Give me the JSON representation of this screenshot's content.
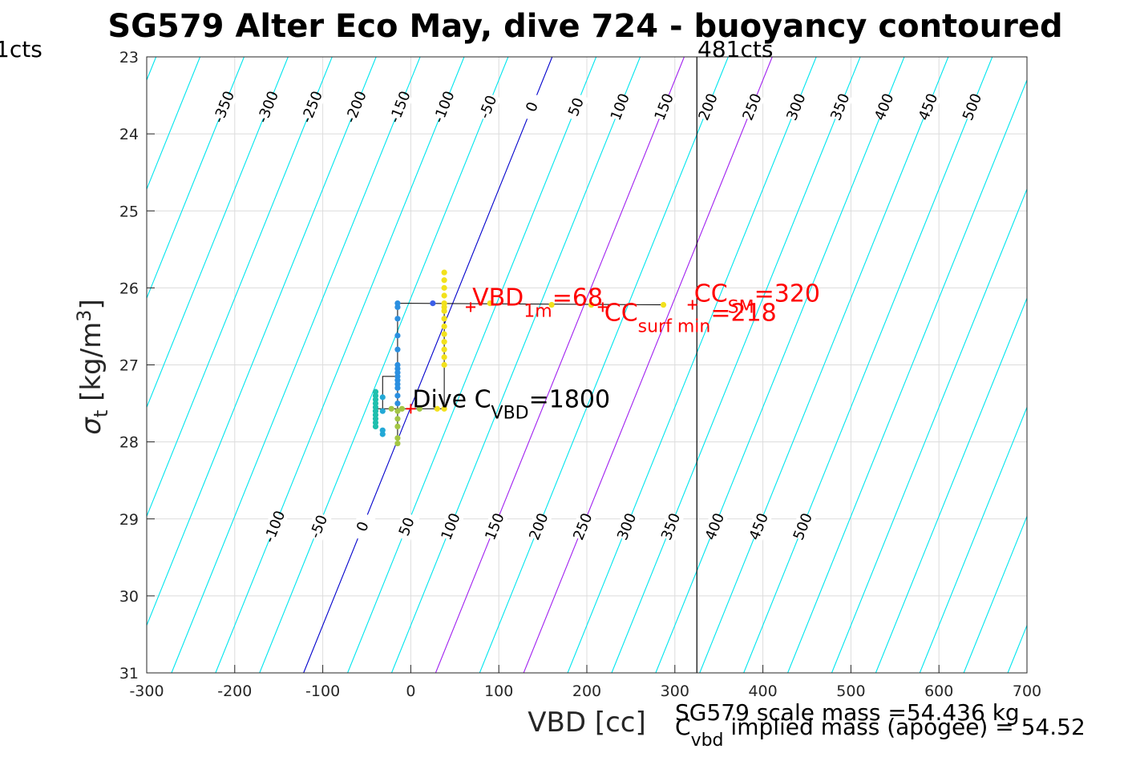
{
  "chart_data": {
    "type": "scatter",
    "title": "SG579 Alter Eco May, dive 724 - buoyancy contoured",
    "xlabel": "VBD [cc]",
    "ylabel": {
      "base": "σ",
      "sub": "t",
      "rest": " [kg/m",
      "sup": "3",
      "close": "]"
    },
    "xlim": [
      -300,
      700
    ],
    "ylim": [
      23,
      31
    ],
    "y_reversed": true,
    "grid": true,
    "x_ticks": [
      "-300",
      "-200",
      "-100",
      "0",
      "100",
      "200",
      "300",
      "400",
      "500",
      "600",
      "700"
    ],
    "y_ticks": [
      "23",
      "24",
      "25",
      "26",
      "27",
      "28",
      "29",
      "30",
      "31"
    ],
    "contours": {
      "slope_cc_per_density": 35.3,
      "levels_top": [
        "-350",
        "-300",
        "-250",
        "-200",
        "-150",
        "-100",
        "-50",
        "0",
        "50",
        "100",
        "150",
        "200",
        "250",
        "300",
        "350",
        "400",
        "450",
        "500"
      ],
      "levels_bottom": [
        "-100",
        "-50",
        "0",
        "50",
        "100",
        "150",
        "200",
        "250",
        "300",
        "350",
        "400",
        "450",
        "500"
      ],
      "levels_drawn": [
        -350,
        -300,
        -250,
        -200,
        -150,
        -100,
        -50,
        0,
        50,
        100,
        150,
        200,
        250,
        300,
        350,
        400,
        450,
        500
      ],
      "zero_level": 0,
      "highlight_levels": [
        150,
        250
      ],
      "colors": {
        "default": "#00e5ee",
        "zero": "#0000cc",
        "highlight": "#a020f0"
      }
    },
    "vertical_line": {
      "x": 325,
      "label_left": "1cts",
      "label_right": "481cts"
    },
    "profile": [
      {
        "x": -15,
        "y": 26.2
      },
      {
        "x": 25,
        "y": 26.2
      },
      {
        "x": 90,
        "y": 26.2
      },
      {
        "x": 160,
        "y": 26.22
      },
      {
        "x": 205,
        "y": 26.22
      },
      {
        "x": 287,
        "y": 26.22
      },
      {
        "x": -15,
        "y": 26.25
      },
      {
        "x": -15,
        "y": 26.4
      },
      {
        "x": -15,
        "y": 26.62
      },
      {
        "x": -15,
        "y": 26.8
      },
      {
        "x": -15,
        "y": 27.0
      },
      {
        "x": -15,
        "y": 27.05
      },
      {
        "x": -15,
        "y": 27.1
      },
      {
        "x": -15,
        "y": 27.15
      },
      {
        "x": -15,
        "y": 27.2
      },
      {
        "x": -15,
        "y": 27.25
      },
      {
        "x": -15,
        "y": 27.3
      },
      {
        "x": -15,
        "y": 27.4
      },
      {
        "x": -15,
        "y": 27.5
      },
      {
        "x": -15,
        "y": 27.6
      },
      {
        "x": -15,
        "y": 27.7
      },
      {
        "x": -15,
        "y": 27.8
      },
      {
        "x": -15,
        "y": 27.95
      },
      {
        "x": -15,
        "y": 28.02
      },
      {
        "x": -32,
        "y": 27.42
      },
      {
        "x": -32,
        "y": 27.6
      },
      {
        "x": -32,
        "y": 27.85
      },
      {
        "x": -32,
        "y": 27.9
      },
      {
        "x": -40,
        "y": 27.35
      },
      {
        "x": -40,
        "y": 27.4
      },
      {
        "x": -40,
        "y": 27.45
      },
      {
        "x": -40,
        "y": 27.5
      },
      {
        "x": -40,
        "y": 27.55
      },
      {
        "x": -40,
        "y": 27.6
      },
      {
        "x": -40,
        "y": 27.65
      },
      {
        "x": -40,
        "y": 27.7
      },
      {
        "x": -40,
        "y": 27.75
      },
      {
        "x": -40,
        "y": 27.8
      },
      {
        "x": -22,
        "y": 27.57
      },
      {
        "x": -10,
        "y": 27.57
      },
      {
        "x": 10,
        "y": 27.57
      },
      {
        "x": 30,
        "y": 27.57
      },
      {
        "x": 38,
        "y": 27.57
      },
      {
        "x": 38,
        "y": 27.0
      },
      {
        "x": 38,
        "y": 26.9
      },
      {
        "x": 38,
        "y": 26.8
      },
      {
        "x": 38,
        "y": 26.7
      },
      {
        "x": 38,
        "y": 26.6
      },
      {
        "x": 38,
        "y": 26.5
      },
      {
        "x": 38,
        "y": 26.4
      },
      {
        "x": 38,
        "y": 26.3
      },
      {
        "x": 38,
        "y": 26.25
      },
      {
        "x": 38,
        "y": 26.2
      },
      {
        "x": 38,
        "y": 26.1
      },
      {
        "x": 38,
        "y": 26.0
      },
      {
        "x": 38,
        "y": 25.9
      },
      {
        "x": 38,
        "y": 25.8
      }
    ],
    "profile_line": [
      [
        -15,
        26.2
      ],
      [
        287,
        26.22
      ],
      [
        -15,
        26.2
      ],
      [
        -15,
        28.02
      ],
      [
        -15,
        27.57
      ],
      [
        -32,
        27.57
      ],
      [
        -32,
        27.15
      ],
      [
        -15,
        27.15
      ],
      [
        -15,
        27.57
      ],
      [
        38,
        27.57
      ],
      [
        38,
        27.3
      ],
      [
        38,
        26.25
      ],
      [
        38,
        27.3
      ],
      [
        38,
        27.57
      ],
      [
        -40,
        27.57
      ],
      [
        -40,
        27.35
      ]
    ],
    "markers": [
      {
        "x": 0,
        "y": 27.57,
        "label": "Dive C",
        "sub": "VBD",
        "value": "=1800",
        "color": "#000000"
      },
      {
        "x": 68,
        "y": 26.25,
        "label": "VBD",
        "sub": "1m",
        "value": "=68",
        "color": "#ff0000"
      },
      {
        "x": 218,
        "y": 26.25,
        "label": "CC",
        "sub": "surf min",
        "value": "=218",
        "color": "#ff0000"
      },
      {
        "x": 320,
        "y": 26.22,
        "label": "CC",
        "sub": "SM",
        "value": "=320",
        "color": "#ff0000"
      }
    ],
    "notes": {
      "scale_mass": "SG579 scale mass =54.436 kg",
      "implied_mass_label": "C",
      "implied_mass_sub": "vbd",
      "implied_mass_rest": " implied mass (apogee) = 54.52"
    }
  }
}
